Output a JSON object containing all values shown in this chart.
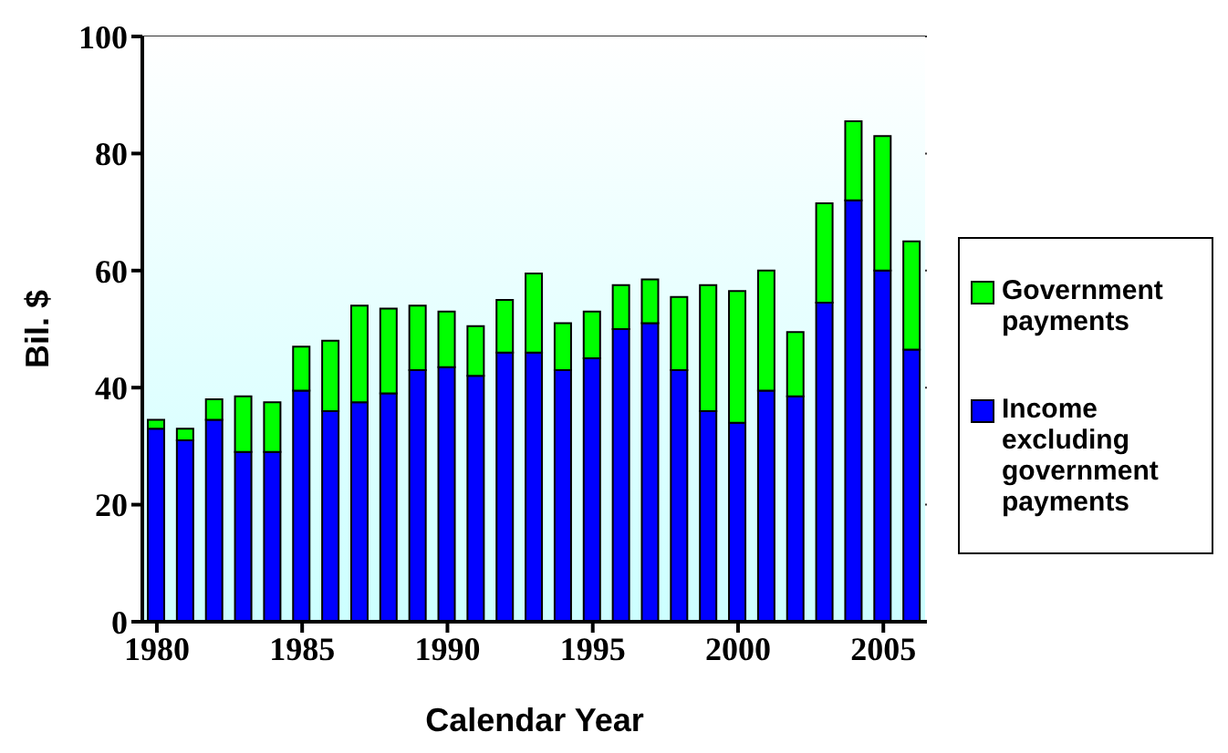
{
  "chart_data": {
    "type": "bar",
    "stacked": true,
    "xlabel": "Calendar Year",
    "ylabel": "Bil. $",
    "x": [
      1980,
      1981,
      1982,
      1983,
      1984,
      1985,
      1986,
      1987,
      1988,
      1989,
      1990,
      1991,
      1992,
      1993,
      1994,
      1995,
      1996,
      1997,
      1998,
      1999,
      2000,
      2001,
      2002,
      2003,
      2004,
      2005,
      2006
    ],
    "series": [
      {
        "name": "Income excluding government payments",
        "color": "#0000ff",
        "values": [
          33,
          31,
          34.5,
          29,
          29,
          39.5,
          36,
          37.5,
          39,
          43,
          43.5,
          42,
          46,
          46,
          43,
          45,
          50,
          51,
          43,
          36,
          34,
          39.5,
          38.5,
          54.5,
          72,
          60,
          46.5
        ]
      },
      {
        "name": "Government payments",
        "color": "#00ff00",
        "values": [
          1.5,
          2,
          3.5,
          9.5,
          8.5,
          7.5,
          12,
          16.5,
          14.5,
          11,
          9.5,
          8.5,
          9,
          13.5,
          8,
          8,
          7.5,
          7.5,
          12.5,
          21.5,
          22.5,
          20.5,
          11,
          17,
          13.5,
          23,
          18.5
        ]
      }
    ],
    "xlim": [
      1979.5,
      2006.5
    ],
    "xticks": [
      1980,
      1985,
      1990,
      1995,
      2000,
      2005
    ],
    "ylim": [
      0,
      100
    ],
    "yticks": [
      0,
      20,
      40,
      60,
      80,
      100
    ],
    "grid": "y",
    "legend": "right"
  }
}
